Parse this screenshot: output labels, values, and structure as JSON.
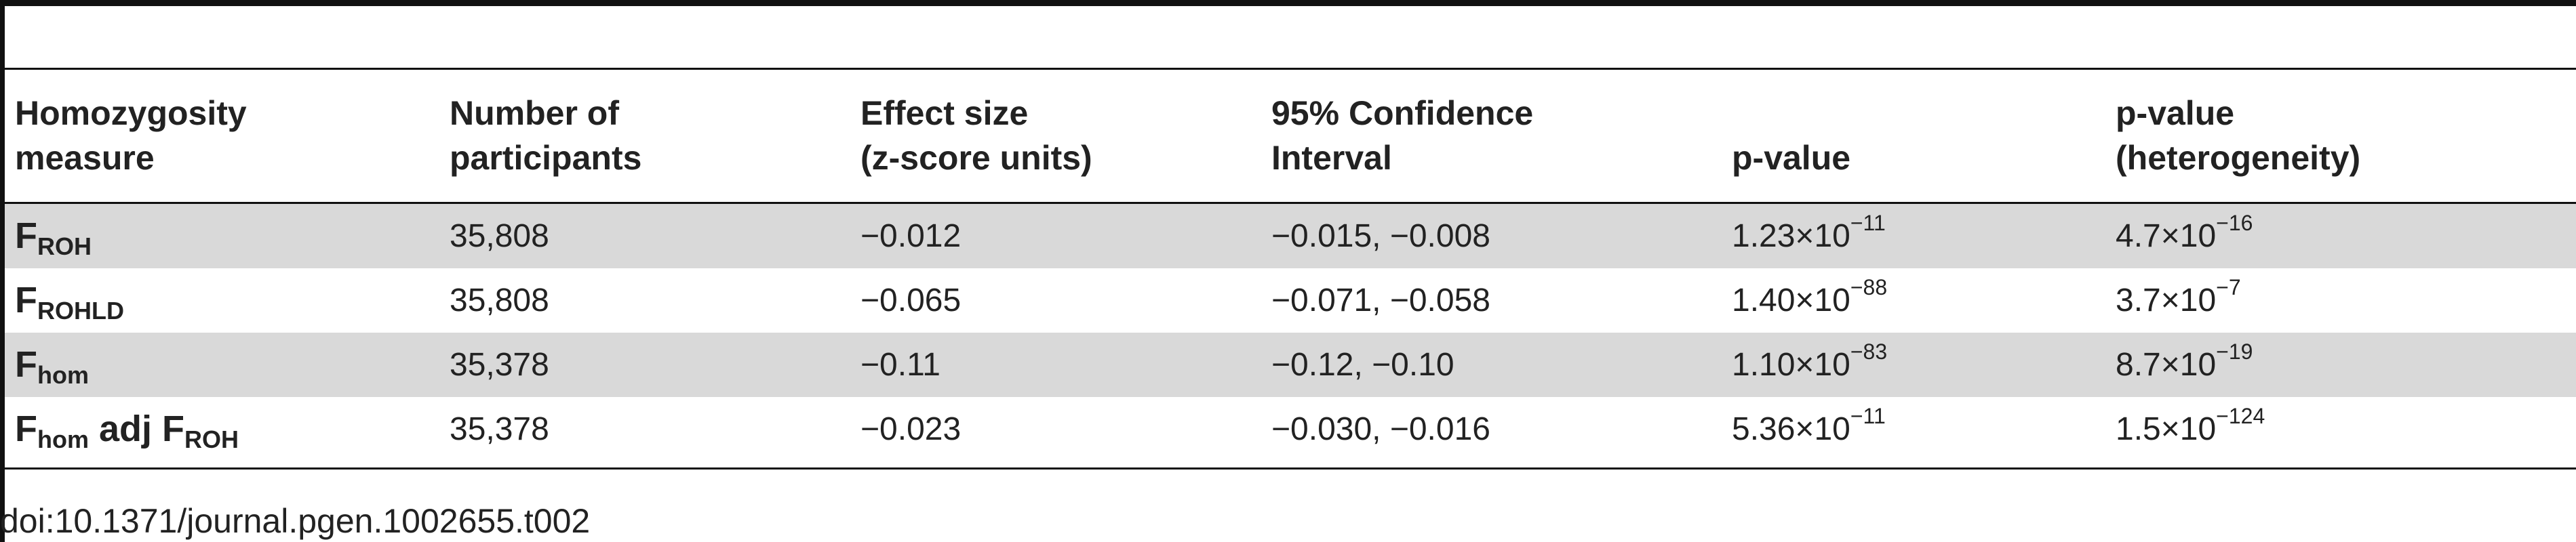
{
  "table": {
    "headers": [
      "Homozygosity\nmeasure",
      "Number of\nparticipants",
      "Effect size\n(z-score units)",
      "95% Confidence\nInterval",
      "p-value",
      "p-value\n(heterogeneity)"
    ],
    "rows": [
      {
        "measure": {
          "base": "F",
          "sub": "ROH",
          "mid": "",
          "base2": "",
          "sub2": ""
        },
        "participants": "35,808",
        "effect": "−0.012",
        "ci": "−0.015, −0.008",
        "p": {
          "mant": "1.23×10",
          "exp": "−11"
        },
        "p_het": {
          "mant": "4.7×10",
          "exp": "−16"
        }
      },
      {
        "measure": {
          "base": "F",
          "sub": "ROHLD",
          "mid": "",
          "base2": "",
          "sub2": ""
        },
        "participants": "35,808",
        "effect": "−0.065",
        "ci": "−0.071, −0.058",
        "p": {
          "mant": "1.40×10",
          "exp": "−88"
        },
        "p_het": {
          "mant": "3.7×10",
          "exp": "−7"
        }
      },
      {
        "measure": {
          "base": "F",
          "sub": "hom",
          "mid": "",
          "base2": "",
          "sub2": ""
        },
        "participants": "35,378",
        "effect": "−0.11",
        "ci": "−0.12, −0.10",
        "p": {
          "mant": "1.10×10",
          "exp": "−83"
        },
        "p_het": {
          "mant": "8.7×10",
          "exp": "−19"
        }
      },
      {
        "measure": {
          "base": "F",
          "sub": "hom",
          "mid": " adj ",
          "base2": "F",
          "sub2": "ROH"
        },
        "participants": "35,378",
        "effect": "−0.023",
        "ci": "−0.030, −0.016",
        "p": {
          "mant": "5.36×10",
          "exp": "−11"
        },
        "p_het": {
          "mant": "1.5×10",
          "exp": "−124"
        }
      }
    ]
  },
  "doi": "doi:10.1371/journal.pgen.1002655.t002"
}
